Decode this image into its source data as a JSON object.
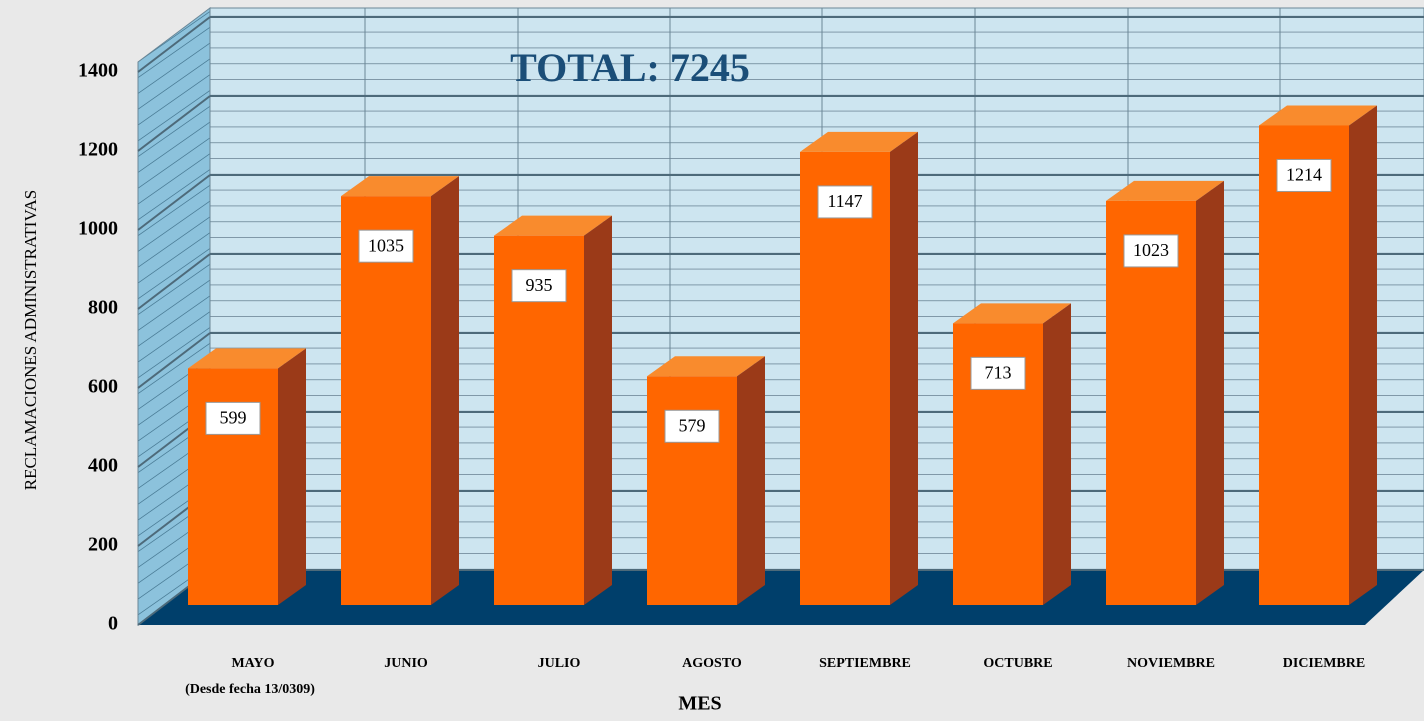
{
  "chart_data": {
    "type": "bar3d",
    "title": "TOTAL: 7245",
    "annotation": "(Desde fecha  13/0309)",
    "x_label": "MES",
    "y_label": "RECLAMACIONES ADMINISTRATIVAS",
    "categories": [
      "MAYO",
      "JUNIO",
      "JULIO",
      "AGOSTO",
      "SEPTIEMBRE",
      "OCTUBRE",
      "NOVIEMBRE",
      "DICIEMBRE"
    ],
    "values": [
      599,
      1035,
      935,
      579,
      1147,
      713,
      1023,
      1214
    ],
    "color": "#ff6600",
    "ylim": [
      0,
      1400
    ],
    "yticks": [
      0,
      200,
      400,
      600,
      800,
      1000,
      1200,
      1400
    ],
    "grid": true
  }
}
